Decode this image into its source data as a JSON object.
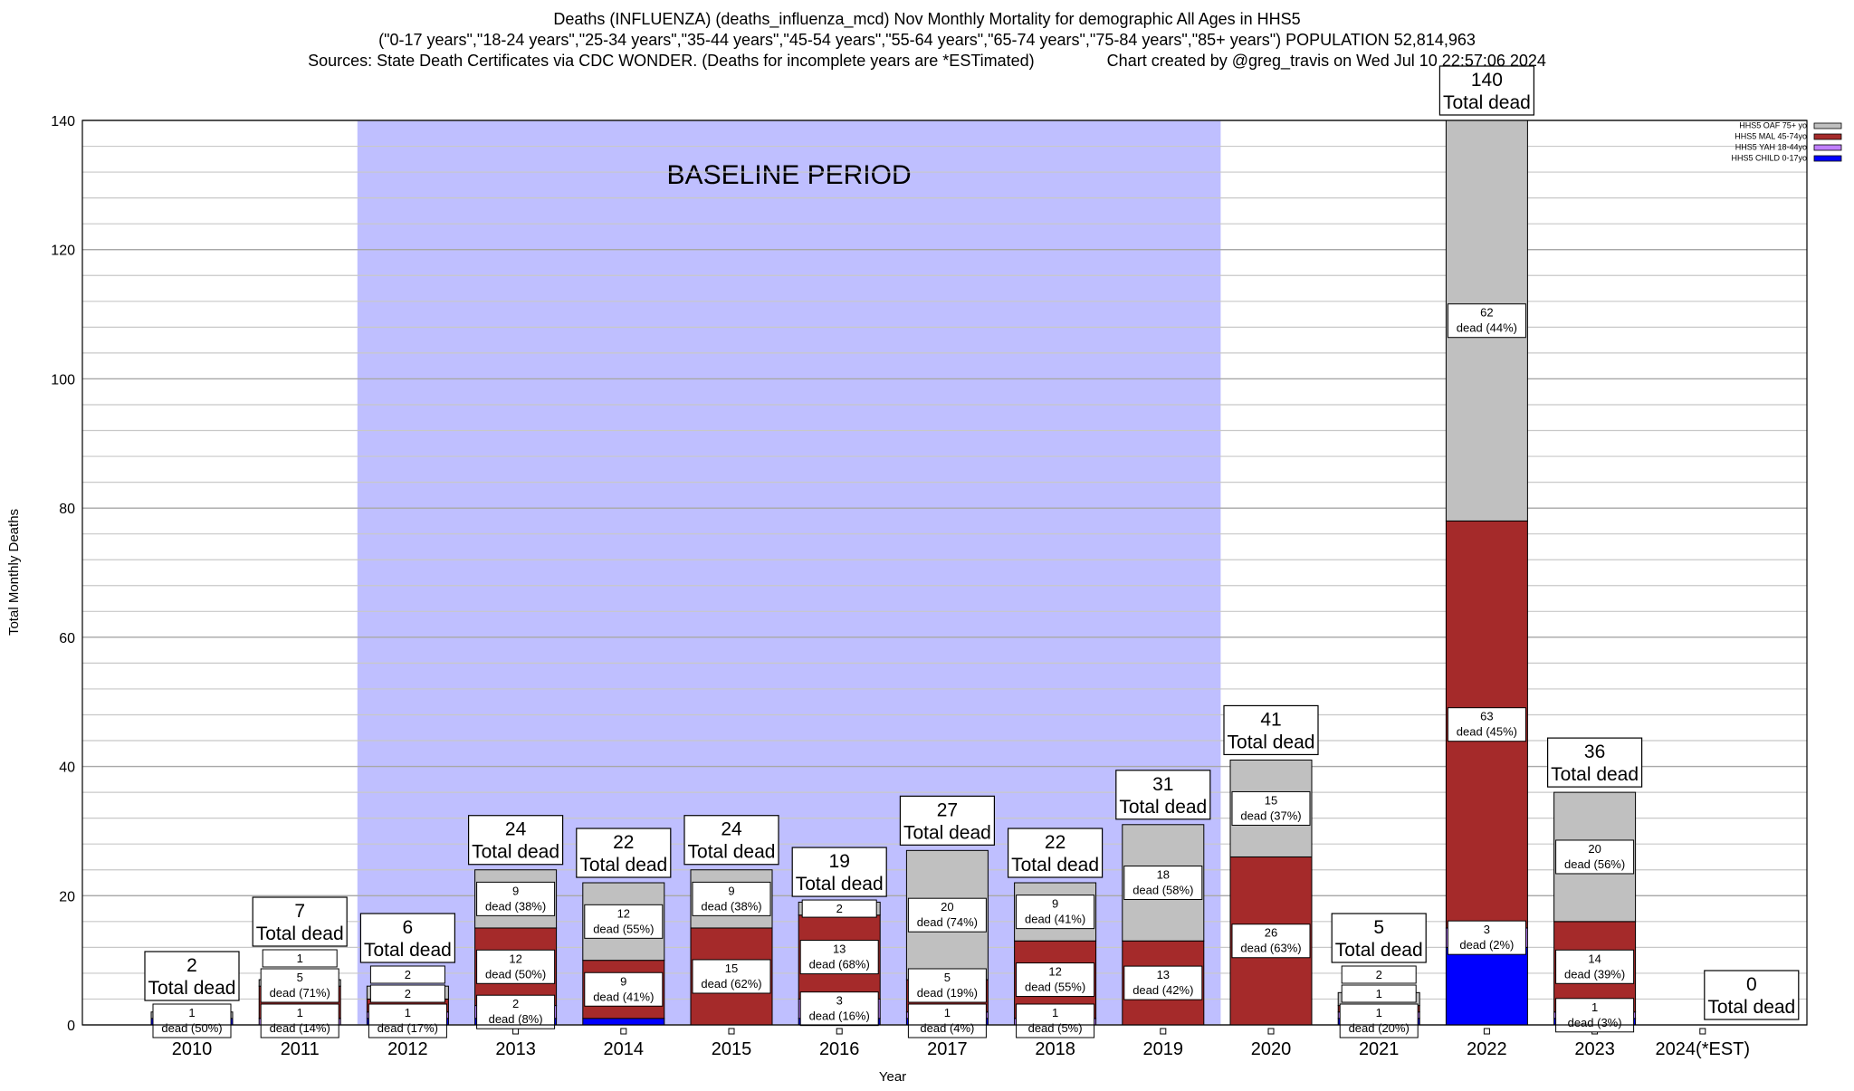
{
  "chart_data": {
    "type": "bar",
    "stacked": true,
    "title_lines": [
      "Deaths (INFLUENZA) (deaths_influenza_mcd) Nov Monthly Mortality for demographic All Ages in HHS5",
      "(\"0-17 years\",\"18-24 years\",\"25-34 years\",\"35-44 years\",\"45-54 years\",\"55-64 years\",\"65-74 years\",\"75-84 years\",\"85+ years\") POPULATION 52,814,963",
      "Sources: State Death Certificates via CDC WONDER. (Deaths for incomplete years are *ESTimated)                Chart created by @greg_travis on Wed Jul 10 22:57:06 2024"
    ],
    "xlabel": "Year",
    "ylabel": "Total Monthly Deaths",
    "ylim": [
      0,
      140
    ],
    "yticks": [
      0,
      20,
      40,
      60,
      80,
      100,
      120,
      140
    ],
    "grid": true,
    "legend_position": "top-right",
    "annotation": {
      "text": "BASELINE PERIOD",
      "from": "2012",
      "to": "2019",
      "color": "#bfbfff"
    },
    "total_suffix": "Total dead",
    "dead_word": "dead",
    "categories": [
      "2010",
      "2011",
      "2012",
      "2013",
      "2014",
      "2015",
      "2016",
      "2017",
      "2018",
      "2019",
      "2020",
      "2021",
      "2022",
      "2023",
      "2024(*EST)"
    ],
    "series": [
      {
        "name": "HHS5 CHILD 0-17yo",
        "color": "#0000ff",
        "values": [
          1,
          0,
          1,
          1,
          1,
          0,
          1,
          1,
          0,
          0,
          0,
          1,
          12,
          1,
          0
        ]
      },
      {
        "name": "HHS5 YAH 18-44yo",
        "color": "#c080ff",
        "values": [
          0,
          1,
          1,
          2,
          0,
          0,
          3,
          1,
          1,
          0,
          0,
          1,
          3,
          1,
          0
        ]
      },
      {
        "name": "HHS5 MAL 45-74yo",
        "color": "#a52a2a",
        "values": [
          0,
          5,
          2,
          12,
          9,
          15,
          13,
          5,
          12,
          13,
          26,
          1,
          63,
          14,
          0
        ]
      },
      {
        "name": "HHS5 OAF 75+ yo",
        "color": "#c0c0c0",
        "values": [
          1,
          1,
          2,
          9,
          12,
          9,
          2,
          20,
          9,
          18,
          15,
          2,
          62,
          20,
          0
        ]
      }
    ],
    "totals": [
      2,
      7,
      6,
      24,
      22,
      24,
      19,
      27,
      22,
      31,
      41,
      5,
      140,
      36,
      0
    ],
    "segment_labels": [
      [
        [
          "1 ",
          "dead (50%)",
          0
        ]
      ],
      [
        [
          "1",
          "dead (14%)",
          1
        ],
        [
          "5",
          "dead (71%)",
          2
        ],
        [
          "1",
          "",
          3
        ]
      ],
      [
        [
          "1",
          "dead (17%)",
          0
        ],
        [
          "2",
          "",
          2
        ],
        [
          "2",
          "",
          3
        ]
      ],
      [
        [
          "2",
          "dead (8%)",
          1
        ],
        [
          "12",
          "dead (50%)",
          2
        ],
        [
          "9",
          "dead (38%)",
          3
        ]
      ],
      [
        [
          "9",
          "dead (41%)",
          2
        ],
        [
          "12",
          "dead (55%)",
          3
        ]
      ],
      [
        [
          "15",
          "dead (62%)",
          2
        ],
        [
          "9",
          "dead (38%)",
          3
        ]
      ],
      [
        [
          "3",
          "dead (16%)",
          1
        ],
        [
          "13",
          "dead (68%)",
          2
        ],
        [
          "2",
          "",
          3
        ]
      ],
      [
        [
          "1",
          "dead (4%)",
          0
        ],
        [
          "5",
          "dead (19%)",
          2
        ],
        [
          "20",
          "dead (74%)",
          3
        ]
      ],
      [
        [
          "1",
          "dead (5%)",
          1
        ],
        [
          "12",
          "dead (55%)",
          2
        ],
        [
          "9",
          "dead (41%)",
          3
        ]
      ],
      [
        [
          "13",
          "dead (42%)",
          2
        ],
        [
          "18",
          "dead (58%)",
          3
        ]
      ],
      [
        [
          "26",
          "dead (63%)",
          2
        ],
        [
          "15",
          "dead (37%)",
          3
        ]
      ],
      [
        [
          "1",
          "dead (20%)",
          0
        ],
        [
          "1",
          "",
          2
        ],
        [
          "2",
          "",
          3
        ]
      ],
      [
        [
          "3",
          "dead (2%)",
          1
        ],
        [
          "63",
          "dead (45%)",
          2
        ],
        [
          "62",
          "dead (44%)",
          3
        ]
      ],
      [
        [
          "1",
          "dead (3%)",
          1
        ],
        [
          "14",
          "dead (39%)",
          2
        ],
        [
          "20",
          "dead (56%)",
          3
        ]
      ],
      []
    ]
  }
}
